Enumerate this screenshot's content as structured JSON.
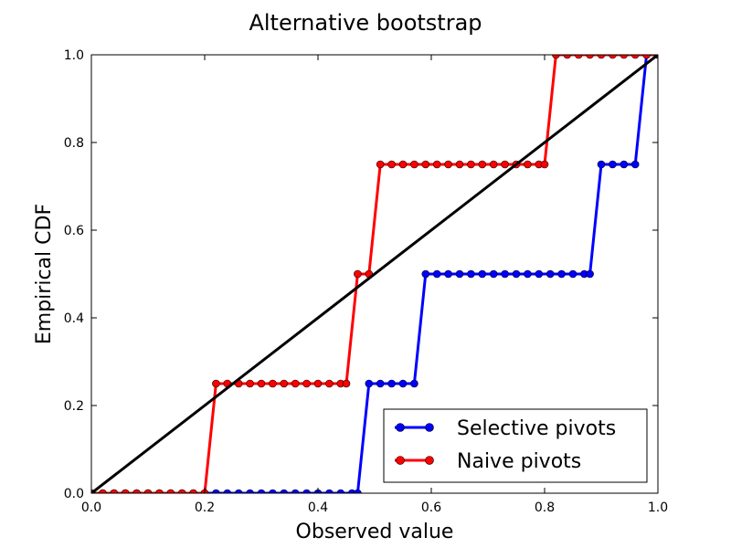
{
  "chart_data": {
    "type": "line",
    "title": "Alternative bootstrap",
    "xlabel": "Observed value",
    "ylabel": "Empirical CDF",
    "xlim": [
      0.0,
      1.0
    ],
    "ylim": [
      0.0,
      1.0
    ],
    "xticks": [
      "0.0",
      "0.2",
      "0.4",
      "0.6",
      "0.8",
      "1.0"
    ],
    "yticks": [
      "0.0",
      "0.2",
      "0.4",
      "0.6",
      "0.8",
      "1.0"
    ],
    "grid": false,
    "legend_position": "lower-right",
    "reference_line": {
      "x": [
        0.0,
        1.0
      ],
      "y": [
        0.0,
        1.0
      ],
      "color": "#000000"
    },
    "series": [
      {
        "name": "Selective pivots",
        "color": "#0000ff",
        "x": [
          0.0,
          0.02,
          0.04,
          0.06,
          0.08,
          0.1,
          0.12,
          0.14,
          0.16,
          0.18,
          0.2,
          0.22,
          0.24,
          0.26,
          0.28,
          0.3,
          0.32,
          0.34,
          0.36,
          0.38,
          0.4,
          0.42,
          0.44,
          0.46,
          0.47,
          0.49,
          0.51,
          0.53,
          0.55,
          0.57,
          0.59,
          0.61,
          0.63,
          0.65,
          0.67,
          0.69,
          0.71,
          0.73,
          0.75,
          0.77,
          0.79,
          0.81,
          0.83,
          0.85,
          0.87,
          0.88,
          0.9,
          0.92,
          0.94,
          0.96,
          0.98,
          1.0
        ],
        "y": [
          0,
          0,
          0,
          0,
          0,
          0,
          0,
          0,
          0,
          0,
          0,
          0,
          0,
          0,
          0,
          0,
          0,
          0,
          0,
          0,
          0,
          0,
          0,
          0,
          0,
          0.25,
          0.25,
          0.25,
          0.25,
          0.25,
          0.5,
          0.5,
          0.5,
          0.5,
          0.5,
          0.5,
          0.5,
          0.5,
          0.5,
          0.5,
          0.5,
          0.5,
          0.5,
          0.5,
          0.5,
          0.5,
          0.75,
          0.75,
          0.75,
          0.75,
          1.0,
          1.0
        ]
      },
      {
        "name": "Naive pivots",
        "color": "#ff0000",
        "x": [
          0.0,
          0.02,
          0.04,
          0.06,
          0.08,
          0.1,
          0.12,
          0.14,
          0.16,
          0.18,
          0.2,
          0.22,
          0.24,
          0.26,
          0.28,
          0.3,
          0.32,
          0.34,
          0.36,
          0.38,
          0.4,
          0.42,
          0.44,
          0.45,
          0.47,
          0.49,
          0.51,
          0.53,
          0.55,
          0.57,
          0.59,
          0.61,
          0.63,
          0.65,
          0.67,
          0.69,
          0.71,
          0.73,
          0.75,
          0.77,
          0.79,
          0.8,
          0.82,
          0.84,
          0.86,
          0.88,
          0.9,
          0.92,
          0.94,
          0.96,
          0.98,
          1.0
        ],
        "y": [
          0,
          0,
          0,
          0,
          0,
          0,
          0,
          0,
          0,
          0,
          0,
          0.25,
          0.25,
          0.25,
          0.25,
          0.25,
          0.25,
          0.25,
          0.25,
          0.25,
          0.25,
          0.25,
          0.25,
          0.25,
          0.5,
          0.5,
          0.75,
          0.75,
          0.75,
          0.75,
          0.75,
          0.75,
          0.75,
          0.75,
          0.75,
          0.75,
          0.75,
          0.75,
          0.75,
          0.75,
          0.75,
          0.75,
          1.0,
          1.0,
          1.0,
          1.0,
          1.0,
          1.0,
          1.0,
          1.0,
          1.0,
          1.0
        ]
      }
    ]
  }
}
